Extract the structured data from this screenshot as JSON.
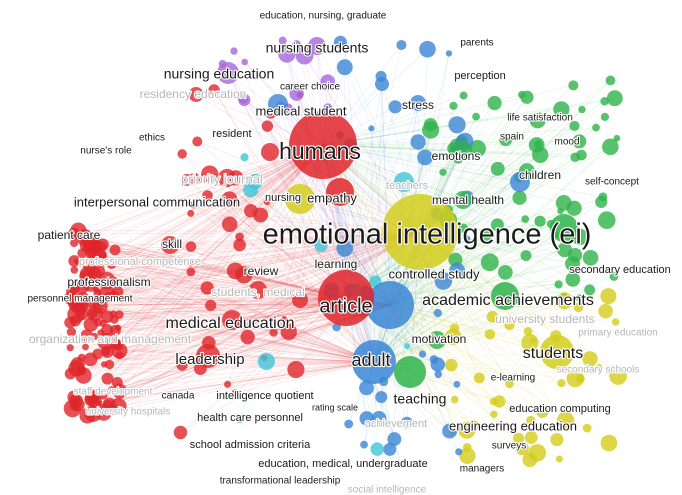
{
  "colors": {
    "red": "#e0262b",
    "green": "#2fb34a",
    "blue": "#3b86d6",
    "yellow": "#d4cc1c",
    "purple": "#a566df",
    "cyan": "#3ec6d8",
    "label": "#1a1a1a",
    "faded": "#b7b7b7"
  },
  "terms": [
    {
      "text": "education, nursing, graduate",
      "cluster": "purple",
      "weight": 1
    },
    {
      "text": "parents",
      "cluster": "blue",
      "weight": 1
    },
    {
      "text": "nursing students",
      "cluster": "purple",
      "weight": 3
    },
    {
      "text": "nursing education",
      "cluster": "purple",
      "weight": 3
    },
    {
      "text": "career choice",
      "cluster": "blue",
      "weight": 1
    },
    {
      "text": "perception",
      "cluster": "green",
      "weight": 1
    },
    {
      "text": "residency education",
      "cluster": "red",
      "weight": 2,
      "faded": true
    },
    {
      "text": "medical student",
      "cluster": "blue",
      "weight": 3
    },
    {
      "text": "stress",
      "cluster": "blue",
      "weight": 2
    },
    {
      "text": "life satisfaction",
      "cluster": "green",
      "weight": 1
    },
    {
      "text": "ethics",
      "cluster": "red",
      "weight": 1
    },
    {
      "text": "resident",
      "cluster": "red",
      "weight": 2
    },
    {
      "text": "spain",
      "cluster": "green",
      "weight": 1
    },
    {
      "text": "mood",
      "cluster": "green",
      "weight": 1
    },
    {
      "text": "nurse's role",
      "cluster": "red",
      "weight": 1
    },
    {
      "text": "humans",
      "cluster": "red",
      "weight": 6
    },
    {
      "text": "emotions",
      "cluster": "green",
      "weight": 2
    },
    {
      "text": "children",
      "cluster": "green",
      "weight": 2
    },
    {
      "text": "priority journal",
      "cluster": "red",
      "weight": 3,
      "faded": true
    },
    {
      "text": "self-concept",
      "cluster": "green",
      "weight": 1
    },
    {
      "text": "teachers",
      "cluster": "cyan",
      "weight": 1,
      "faded": true
    },
    {
      "text": "nursing",
      "cluster": "purple",
      "weight": 2
    },
    {
      "text": "empathy",
      "cluster": "red",
      "weight": 3
    },
    {
      "text": "interpersonal communication",
      "cluster": "red",
      "weight": 3
    },
    {
      "text": "mental health",
      "cluster": "green",
      "weight": 2
    },
    {
      "text": "emotional intelligence (ei)",
      "cluster": "yellow",
      "weight": 10
    },
    {
      "text": "patient care",
      "cluster": "red",
      "weight": 2
    },
    {
      "text": "skill",
      "cluster": "red",
      "weight": 2
    },
    {
      "text": "professional competence",
      "cluster": "red",
      "weight": 2,
      "faded": true
    },
    {
      "text": "learning",
      "cluster": "blue",
      "weight": 2
    },
    {
      "text": "review",
      "cluster": "red",
      "weight": 2
    },
    {
      "text": "controlled study",
      "cluster": "green",
      "weight": 2
    },
    {
      "text": "secondary education",
      "cluster": "green",
      "weight": 2
    },
    {
      "text": "professionalism",
      "cluster": "red",
      "weight": 2
    },
    {
      "text": "students, medical",
      "cluster": "red",
      "weight": 2,
      "faded": true
    },
    {
      "text": "academic achievements",
      "cluster": "green",
      "weight": 4
    },
    {
      "text": "personnel management",
      "cluster": "red",
      "weight": 1
    },
    {
      "text": "article",
      "cluster": "blue",
      "weight": 5
    },
    {
      "text": "university students",
      "cluster": "yellow",
      "weight": 2,
      "faded": true
    },
    {
      "text": "medical education",
      "cluster": "red",
      "weight": 4
    },
    {
      "text": "organization and management",
      "cluster": "red",
      "weight": 2,
      "faded": true
    },
    {
      "text": "primary education",
      "cluster": "yellow",
      "weight": 1,
      "faded": true
    },
    {
      "text": "motivation",
      "cluster": "green",
      "weight": 2
    },
    {
      "text": "leadership",
      "cluster": "red",
      "weight": 4
    },
    {
      "text": "adult",
      "cluster": "blue",
      "weight": 4
    },
    {
      "text": "students",
      "cluster": "yellow",
      "weight": 4
    },
    {
      "text": "e-learning",
      "cluster": "yellow",
      "weight": 1
    },
    {
      "text": "secondary schools",
      "cluster": "yellow",
      "weight": 1,
      "faded": true
    },
    {
      "text": "staff development",
      "cluster": "red",
      "weight": 1,
      "faded": true
    },
    {
      "text": "canada",
      "cluster": "red",
      "weight": 1
    },
    {
      "text": "intelligence quotient",
      "cluster": "blue",
      "weight": 2
    },
    {
      "text": "teaching",
      "cluster": "green",
      "weight": 3
    },
    {
      "text": "university hospitals",
      "cluster": "red",
      "weight": 1,
      "faded": true
    },
    {
      "text": "rating scale",
      "cluster": "blue",
      "weight": 1
    },
    {
      "text": "health care personnel",
      "cluster": "red",
      "weight": 2
    },
    {
      "text": "education computing",
      "cluster": "yellow",
      "weight": 1
    },
    {
      "text": "achievement",
      "cluster": "purple",
      "weight": 2,
      "faded": true
    },
    {
      "text": "engineering education",
      "cluster": "yellow",
      "weight": 3
    },
    {
      "text": "school admission criteria",
      "cluster": "cyan",
      "weight": 2
    },
    {
      "text": "surveys",
      "cluster": "yellow",
      "weight": 1
    },
    {
      "text": "education, medical, undergraduate",
      "cluster": "blue",
      "weight": 2
    },
    {
      "text": "managers",
      "cluster": "yellow",
      "weight": 1
    },
    {
      "text": "transformational leadership",
      "cluster": "red",
      "weight": 1
    },
    {
      "text": "social intelligence",
      "cluster": "blue",
      "weight": 1,
      "faded": true
    }
  ]
}
